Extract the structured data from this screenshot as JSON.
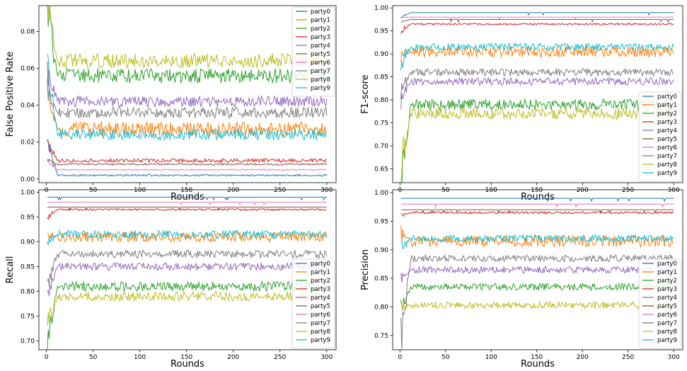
{
  "chart_data": [
    {
      "type": "line",
      "xlabel": "Rounds",
      "ylabel": "False Positive Rate",
      "xlim": [
        -8,
        310
      ],
      "ylim": [
        -0.002,
        0.094
      ],
      "xticks": [
        0,
        50,
        100,
        150,
        200,
        250,
        300
      ],
      "xtick_labels": [
        "0",
        "50",
        "100",
        "150",
        "200",
        "250",
        "300"
      ],
      "yticks": [
        0.0,
        0.02,
        0.04,
        0.06,
        0.08
      ],
      "ytick_labels": [
        "0.00",
        "0.02",
        "0.04",
        "0.06",
        "0.08"
      ],
      "legend": "top-right",
      "x_range": [
        1,
        300
      ],
      "series": [
        {
          "name": "party0",
          "color": "#1f77b4",
          "start": 0.02,
          "values": [
            0.002
          ],
          "noise": 0.0005
        },
        {
          "name": "party1",
          "color": "#ff7f0e",
          "start": 0.05,
          "values": [
            0.027
          ],
          "noise": 0.004
        },
        {
          "name": "party2",
          "color": "#2ca02c",
          "start": 0.091,
          "values": [
            0.056
          ],
          "noise": 0.004
        },
        {
          "name": "party3",
          "color": "#d62728",
          "start": 0.02,
          "values": [
            0.01
          ],
          "noise": 0.001
        },
        {
          "name": "party4",
          "color": "#9467bd",
          "start": 0.06,
          "values": [
            0.042
          ],
          "noise": 0.003
        },
        {
          "name": "party5",
          "color": "#8c564b",
          "start": 0.01,
          "values": [
            0.008
          ],
          "noise": 0.0005
        },
        {
          "name": "party6",
          "color": "#e377c2",
          "start": 0.01,
          "values": [
            0.005
          ],
          "noise": 0.0003
        },
        {
          "name": "party7",
          "color": "#7f7f7f",
          "start": 0.05,
          "values": [
            0.036
          ],
          "noise": 0.003
        },
        {
          "name": "party8",
          "color": "#bcbd22",
          "start": 0.09,
          "values": [
            0.064
          ],
          "noise": 0.004
        },
        {
          "name": "party9",
          "color": "#17becf",
          "start": 0.06,
          "values": [
            0.024
          ],
          "noise": 0.003
        }
      ]
    },
    {
      "type": "line",
      "xlabel": "Rounds",
      "ylabel": "F1-score",
      "xlim": [
        -8,
        310
      ],
      "ylim": [
        0.62,
        1.005
      ],
      "xticks": [
        0,
        50,
        100,
        150,
        200,
        250,
        300
      ],
      "xtick_labels": [
        "0",
        "50",
        "100",
        "150",
        "200",
        "250",
        "300"
      ],
      "yticks": [
        0.65,
        0.7,
        0.75,
        0.8,
        0.85,
        0.9,
        0.95,
        1.0
      ],
      "ytick_labels": [
        "0.65",
        "0.70",
        "0.75",
        "0.80",
        "0.85",
        "0.90",
        "0.95",
        "1.00"
      ],
      "legend": "lower-right",
      "x_range": [
        1,
        300
      ],
      "series": [
        {
          "name": "party0",
          "color": "#1f77b4",
          "start": 0.98,
          "values": [
            0.99
          ],
          "noise": 0.0
        },
        {
          "name": "party1",
          "color": "#ff7f0e",
          "start": 0.9,
          "values": [
            0.905
          ],
          "noise": 0.012
        },
        {
          "name": "party2",
          "color": "#2ca02c",
          "start": 0.63,
          "values": [
            0.79
          ],
          "noise": 0.012
        },
        {
          "name": "party3",
          "color": "#d62728",
          "start": 0.95,
          "values": [
            0.965
          ],
          "noise": 0.002
        },
        {
          "name": "party4",
          "color": "#9467bd",
          "start": 0.8,
          "values": [
            0.84
          ],
          "noise": 0.008
        },
        {
          "name": "party5",
          "color": "#8c564b",
          "start": 0.97,
          "values": [
            0.975
          ],
          "noise": 0.0
        },
        {
          "name": "party6",
          "color": "#e377c2",
          "start": 0.98,
          "values": [
            0.98
          ],
          "noise": 0.0
        },
        {
          "name": "party7",
          "color": "#7f7f7f",
          "start": 0.82,
          "values": [
            0.86
          ],
          "noise": 0.008
        },
        {
          "name": "party8",
          "color": "#bcbd22",
          "start": 0.66,
          "values": [
            0.77
          ],
          "noise": 0.012
        },
        {
          "name": "party9",
          "color": "#17becf",
          "start": 0.88,
          "values": [
            0.915
          ],
          "noise": 0.008
        }
      ]
    },
    {
      "type": "line",
      "xlabel": "Rounds",
      "ylabel": "Recall",
      "xlim": [
        -8,
        310
      ],
      "ylim": [
        0.682,
        1.005
      ],
      "xticks": [
        0,
        50,
        100,
        150,
        200,
        250,
        300
      ],
      "xtick_labels": [
        "0",
        "50",
        "100",
        "150",
        "200",
        "250",
        "300"
      ],
      "yticks": [
        0.7,
        0.75,
        0.8,
        0.85,
        0.9,
        0.95,
        1.0
      ],
      "ytick_labels": [
        "0.70",
        "0.75",
        "0.80",
        "0.85",
        "0.90",
        "0.95",
        "1.00"
      ],
      "legend": "lower-right",
      "x_range": [
        1,
        300
      ],
      "series": [
        {
          "name": "party0",
          "color": "#1f77b4",
          "start": 0.99,
          "values": [
            0.99
          ],
          "noise": 0.0
        },
        {
          "name": "party1",
          "color": "#ff7f0e",
          "start": 0.92,
          "values": [
            0.91
          ],
          "noise": 0.01
        },
        {
          "name": "party2",
          "color": "#2ca02c",
          "start": 0.69,
          "values": [
            0.81
          ],
          "noise": 0.01
        },
        {
          "name": "party3",
          "color": "#d62728",
          "start": 0.95,
          "values": [
            0.965
          ],
          "noise": 0.002
        },
        {
          "name": "party4",
          "color": "#9467bd",
          "start": 0.8,
          "values": [
            0.85
          ],
          "noise": 0.008
        },
        {
          "name": "party5",
          "color": "#8c564b",
          "start": 0.97,
          "values": [
            0.97
          ],
          "noise": 0.0
        },
        {
          "name": "party6",
          "color": "#e377c2",
          "start": 0.98,
          "values": [
            0.98
          ],
          "noise": 0.0
        },
        {
          "name": "party7",
          "color": "#7f7f7f",
          "start": 0.82,
          "values": [
            0.875
          ],
          "noise": 0.008
        },
        {
          "name": "party8",
          "color": "#bcbd22",
          "start": 0.73,
          "values": [
            0.79
          ],
          "noise": 0.01
        },
        {
          "name": "party9",
          "color": "#17becf",
          "start": 0.9,
          "values": [
            0.915
          ],
          "noise": 0.008
        }
      ]
    },
    {
      "type": "line",
      "xlabel": "Rounds",
      "ylabel": "Precision",
      "xlim": [
        -8,
        310
      ],
      "ylim": [
        0.725,
        1.005
      ],
      "xticks": [
        0,
        50,
        100,
        150,
        200,
        250,
        300
      ],
      "xtick_labels": [
        "0",
        "50",
        "100",
        "150",
        "200",
        "250",
        "300"
      ],
      "yticks": [
        0.75,
        0.8,
        0.85,
        0.9,
        0.95,
        1.0
      ],
      "ytick_labels": [
        "0.75",
        "0.80",
        "0.85",
        "0.90",
        "0.95",
        "1.00"
      ],
      "legend": "lower-right",
      "x_range": [
        1,
        300
      ],
      "series": [
        {
          "name": "party0",
          "color": "#1f77b4",
          "start": 0.99,
          "values": [
            0.99
          ],
          "noise": 0.0
        },
        {
          "name": "party1",
          "color": "#ff7f0e",
          "start": 0.93,
          "values": [
            0.915
          ],
          "noise": 0.01
        },
        {
          "name": "party2",
          "color": "#2ca02c",
          "start": 0.8,
          "values": [
            0.835
          ],
          "noise": 0.006
        },
        {
          "name": "party3",
          "color": "#d62728",
          "start": 0.96,
          "values": [
            0.965
          ],
          "noise": 0.002
        },
        {
          "name": "party4",
          "color": "#9467bd",
          "start": 0.85,
          "values": [
            0.865
          ],
          "noise": 0.006
        },
        {
          "name": "party5",
          "color": "#8c564b",
          "start": 0.97,
          "values": [
            0.97
          ],
          "noise": 0.0
        },
        {
          "name": "party6",
          "color": "#e377c2",
          "start": 0.98,
          "values": [
            0.98
          ],
          "noise": 0.0
        },
        {
          "name": "party7",
          "color": "#7f7f7f",
          "start": 0.74,
          "values": [
            0.885
          ],
          "noise": 0.006
        },
        {
          "name": "party8",
          "color": "#bcbd22",
          "start": 0.8,
          "values": [
            0.803
          ],
          "noise": 0.006
        },
        {
          "name": "party9",
          "color": "#17becf",
          "start": 0.9,
          "values": [
            0.92
          ],
          "noise": 0.006
        }
      ]
    }
  ]
}
